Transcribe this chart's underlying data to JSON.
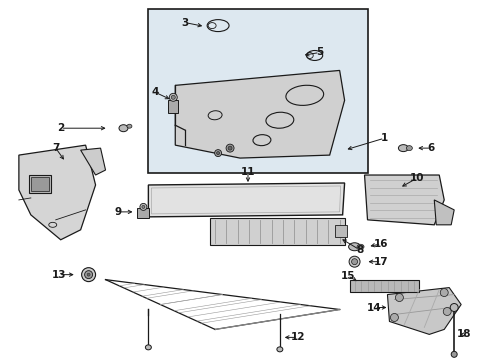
{
  "bg_color": "#ffffff",
  "line_color": "#1a1a1a",
  "gray_fill": "#e8e8e8",
  "dark_gray": "#888888",
  "box_fill": "#dde8f0",
  "part_fill": "#d8d8d8"
}
